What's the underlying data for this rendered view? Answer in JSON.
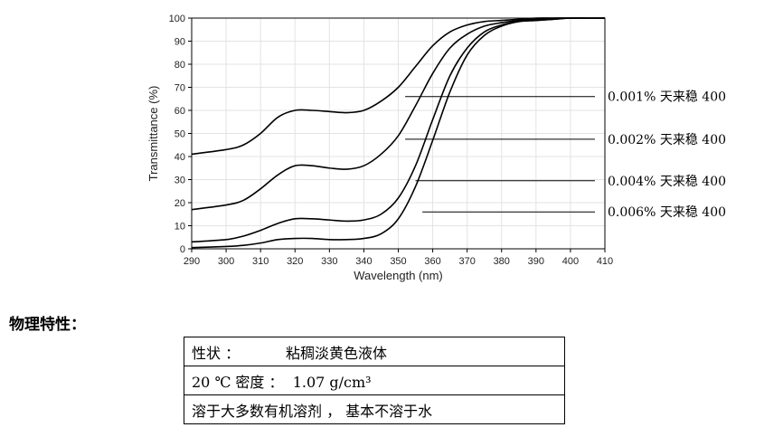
{
  "chart_data": {
    "type": "line",
    "xlabel": "Wavelength (nm)",
    "ylabel": "Transmittance (%)",
    "xlim": [
      290,
      410
    ],
    "ylim": [
      0,
      100
    ],
    "x_ticks": [
      290,
      300,
      310,
      320,
      330,
      340,
      350,
      360,
      370,
      380,
      390,
      400,
      410
    ],
    "y_ticks": [
      0,
      10,
      20,
      30,
      40,
      50,
      60,
      70,
      80,
      90,
      100
    ],
    "grid": true,
    "line_color": "#000000",
    "series": [
      {
        "name": "0.001% 天来稳 400",
        "x": [
          290,
          300,
          305,
          310,
          315,
          320,
          325,
          330,
          335,
          340,
          345,
          350,
          355,
          360,
          365,
          370,
          375,
          380,
          385,
          390,
          395,
          400,
          405,
          410
        ],
        "y": [
          41,
          43,
          45,
          50,
          57,
          60,
          60,
          59.5,
          59,
          60,
          64,
          70,
          79,
          88,
          94,
          97,
          98.5,
          99,
          99.5,
          100,
          100,
          100,
          100,
          100
        ]
      },
      {
        "name": "0.002% 天来稳 400",
        "x": [
          290,
          300,
          305,
          310,
          315,
          320,
          325,
          330,
          335,
          340,
          345,
          350,
          355,
          360,
          365,
          370,
          375,
          380,
          385,
          390,
          395,
          400,
          405,
          410
        ],
        "y": [
          17,
          19,
          21,
          26,
          32,
          36,
          36,
          35,
          34.5,
          36,
          41,
          49,
          62,
          76,
          87,
          93,
          96.5,
          98,
          99,
          99.5,
          100,
          100,
          100,
          100
        ]
      },
      {
        "name": "0.004% 天来稳 400",
        "x": [
          290,
          300,
          305,
          310,
          315,
          320,
          325,
          330,
          335,
          340,
          345,
          350,
          355,
          360,
          365,
          370,
          375,
          380,
          385,
          390,
          395,
          400,
          405,
          410
        ],
        "y": [
          3,
          4,
          5.5,
          8,
          11,
          13,
          13,
          12.5,
          12,
          12.5,
          15,
          22,
          36,
          56,
          75,
          87,
          94,
          97,
          98.5,
          99,
          99.5,
          100,
          100,
          100
        ]
      },
      {
        "name": "0.006% 天来稳 400",
        "x": [
          290,
          300,
          305,
          310,
          315,
          320,
          325,
          330,
          335,
          340,
          345,
          350,
          355,
          360,
          365,
          370,
          375,
          380,
          385,
          390,
          395,
          400,
          405,
          410
        ],
        "y": [
          0.5,
          1,
          1.5,
          2.5,
          4,
          4.5,
          4.5,
          4,
          4,
          4.5,
          6.5,
          13,
          27,
          47,
          68,
          84,
          92.5,
          96.5,
          98.5,
          99,
          99.5,
          100,
          100,
          100
        ]
      }
    ],
    "annotations": [
      {
        "label": "0.001% 天来稳 400",
        "x": 352,
        "y": 66
      },
      {
        "label": "0.002% 天来稳 400",
        "x": 352,
        "y": 47.5
      },
      {
        "label": "0.004% 天来稳 400",
        "x": 355,
        "y": 29.5
      },
      {
        "label": "0.006% 天来稳 400",
        "x": 357,
        "y": 16
      }
    ]
  },
  "properties": {
    "heading": "物理特性：",
    "rows": [
      "性状 ：          粘稠淡黄色液体",
      "20 ℃ 密度 ：  1.07 g/cm³",
      "溶于大多数有机溶剂 ， 基本不溶于水"
    ]
  }
}
